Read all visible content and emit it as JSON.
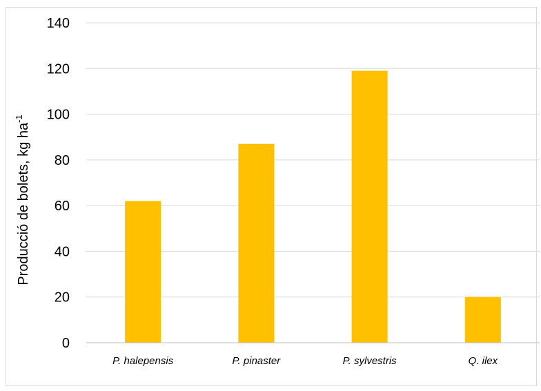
{
  "chart_data": {
    "type": "bar",
    "title": "",
    "xlabel": "",
    "ylabel": "Producció de bolets, kg ha",
    "ylabel_superscript": "-1",
    "categories": [
      "P. halepensis",
      "P. pinaster",
      "P. sylvestris",
      "Q. ilex"
    ],
    "values": [
      62,
      87,
      119,
      20
    ],
    "ylim": [
      0,
      140
    ],
    "yticks": [
      0,
      20,
      40,
      60,
      80,
      100,
      120,
      140
    ],
    "grid": true,
    "legend": "none",
    "bar_color": "#FFC000",
    "grid_color": "#d9d9d9"
  }
}
